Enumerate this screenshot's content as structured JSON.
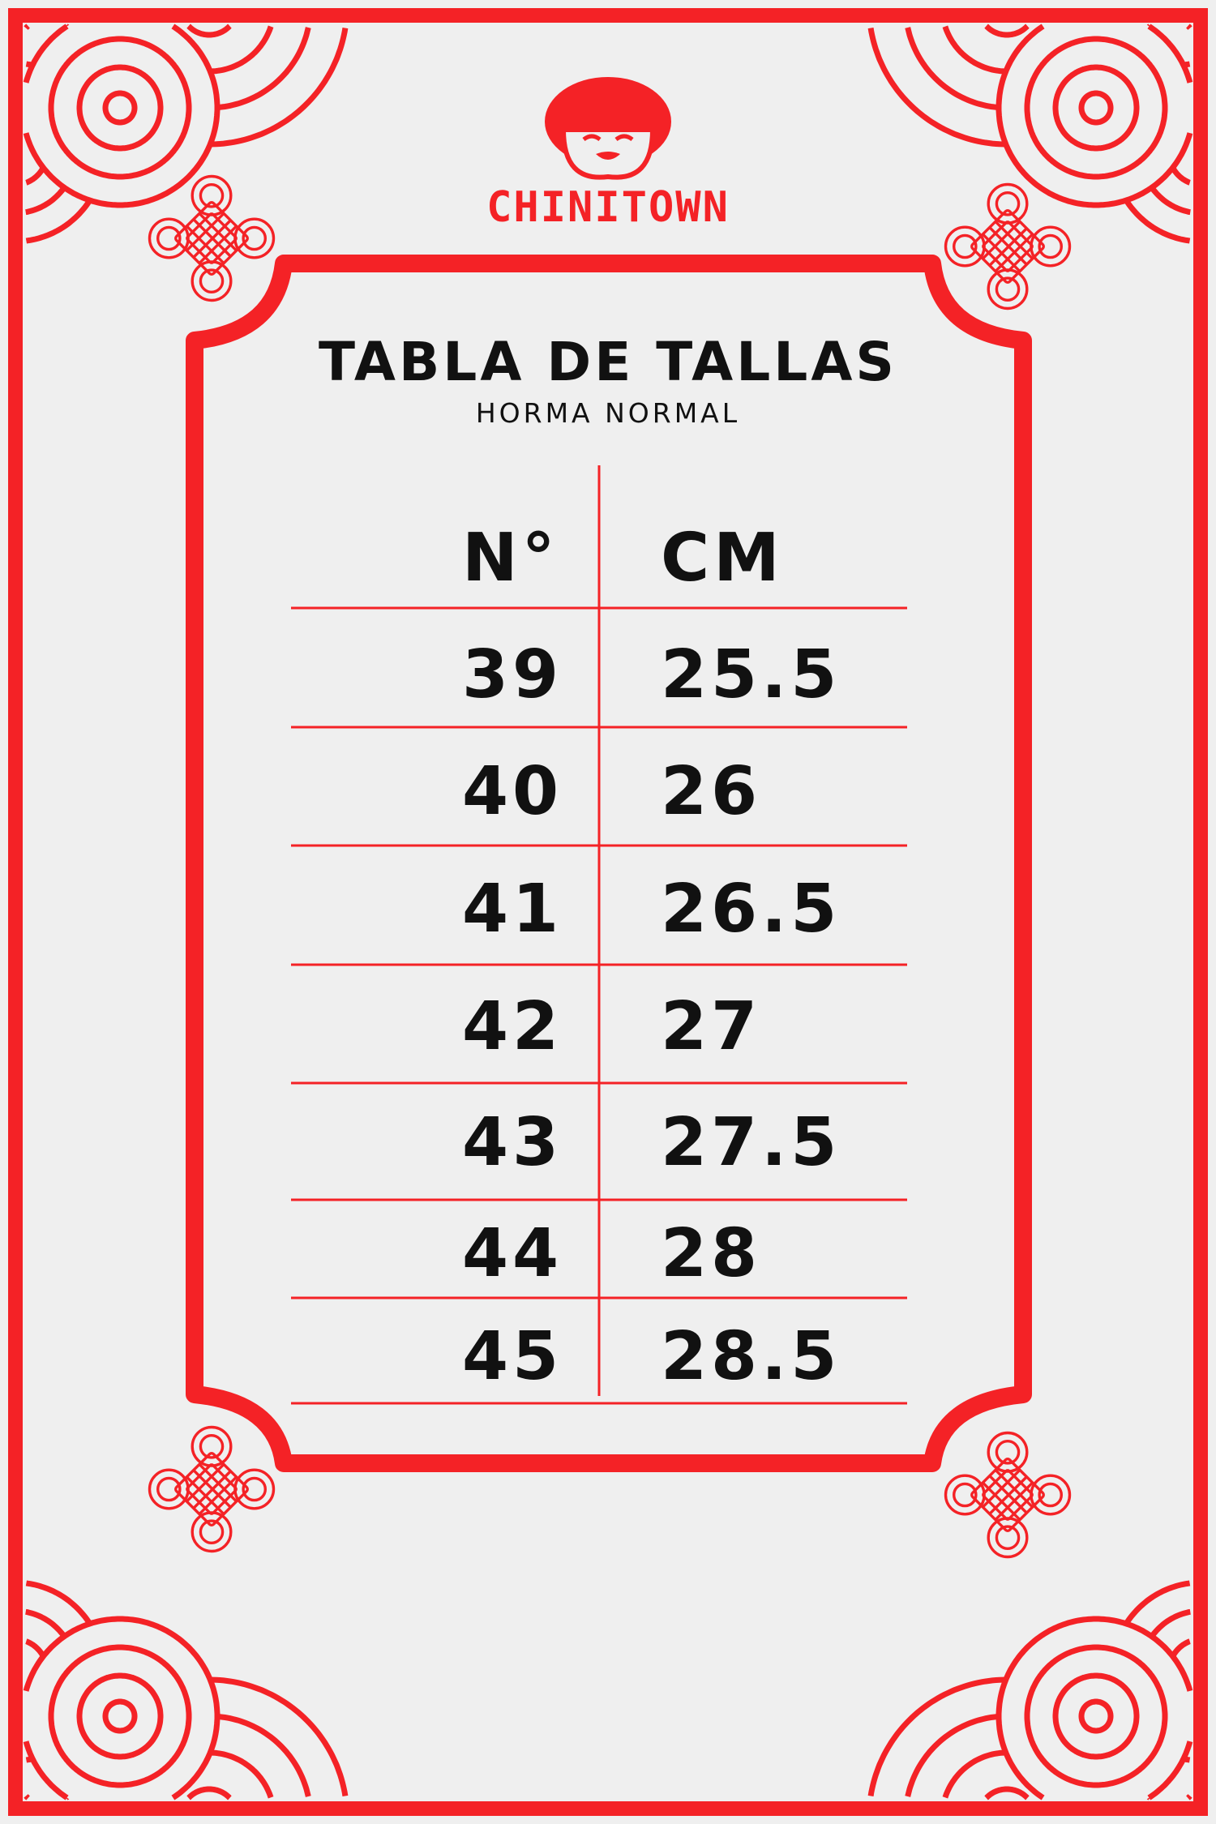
{
  "brand": {
    "logo_text": "CHINITOWN",
    "icon": "smiling-girl-face-logo"
  },
  "colors": {
    "accent": "#f42226",
    "background": "#efefef",
    "text": "#111111"
  },
  "title": "TABLA DE TALLAS",
  "subtitle": "HORMA NORMAL",
  "table": {
    "headers": [
      "N°",
      "CM"
    ],
    "rows": [
      [
        "39",
        "25.5"
      ],
      [
        "40",
        "26"
      ],
      [
        "41",
        "26.5"
      ],
      [
        "42",
        "27"
      ],
      [
        "43",
        "27.5"
      ],
      [
        "44",
        "28"
      ],
      [
        "45",
        "28.5"
      ]
    ]
  },
  "decorations": {
    "corners": "concentric-wave-pattern",
    "ornaments": "endless-knot-icon"
  }
}
